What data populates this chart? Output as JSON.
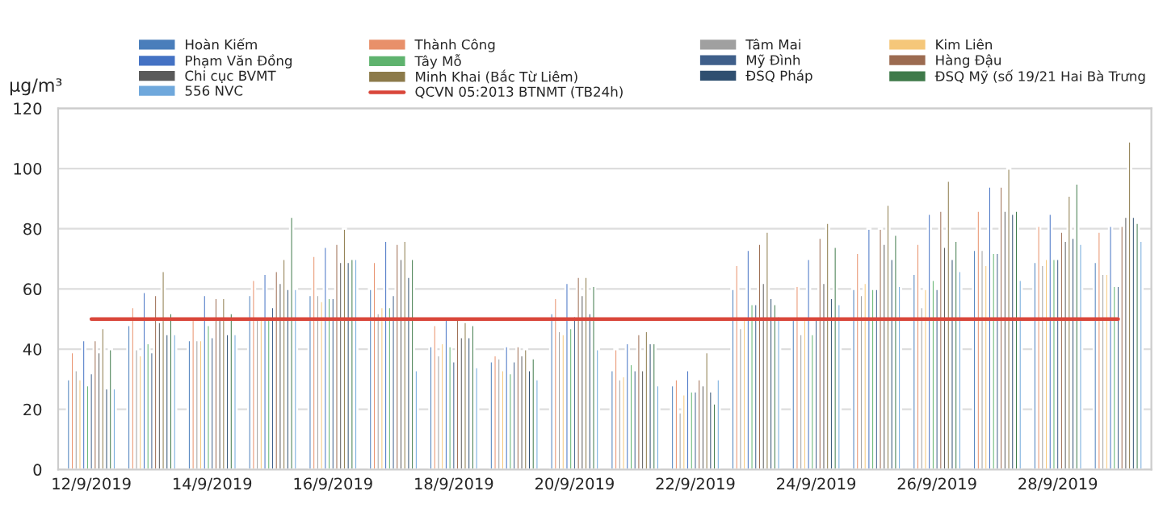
{
  "chart_data": {
    "type": "bar",
    "ylabel": "μg/m³",
    "categories": [
      "12/9/2019",
      null,
      "14/9/2019",
      null,
      "16/9/2019",
      null,
      "18/9/2019",
      null,
      "20/9/2019",
      null,
      "22/9/2019",
      null,
      "24/9/2019",
      null,
      "26/9/2019",
      null,
      "28/9/2019",
      null
    ],
    "series": [
      {
        "name": "Hoàn Kiếm",
        "color": "#4a7ebb",
        "values": [
          30,
          48,
          43,
          58,
          58,
          60,
          41,
          36,
          52,
          33,
          28,
          60,
          50,
          60,
          65,
          73,
          69,
          69
        ]
      },
      {
        "name": "Thành Công",
        "color": "#e8906a",
        "values": [
          39,
          54,
          50,
          63,
          71,
          69,
          48,
          38,
          57,
          40,
          30,
          68,
          61,
          72,
          75,
          86,
          81,
          79
        ]
      },
      {
        "name": "Tâm Mai",
        "color": "#a0a0a0",
        "values": [
          33,
          40,
          43,
          50,
          58,
          52,
          38,
          37,
          46,
          30,
          19,
          47,
          45,
          58,
          54,
          73,
          68,
          65
        ]
      },
      {
        "name": "Kim Liên",
        "color": "#f5c77a",
        "values": [
          30,
          38,
          43,
          50,
          56,
          54,
          42,
          33,
          45,
          31,
          25,
          50,
          50,
          62,
          60,
          68,
          70,
          65
        ]
      },
      {
        "name": "Phạm Văn Đồng",
        "color": "#4472c4",
        "values": [
          43,
          59,
          58,
          65,
          74,
          76,
          50,
          41,
          62,
          42,
          33,
          73,
          70,
          80,
          85,
          94,
          85,
          81
        ]
      },
      {
        "name": "Tây Mỗ",
        "color": "#5fb36e",
        "values": [
          28,
          42,
          48,
          50,
          57,
          54,
          41,
          32,
          47,
          35,
          26,
          55,
          45,
          60,
          63,
          72,
          70,
          61
        ]
      },
      {
        "name": "Mỹ Đình",
        "color": "#3f5f8a",
        "values": [
          32,
          39,
          44,
          54,
          57,
          58,
          36,
          36,
          51,
          33,
          26,
          55,
          50,
          60,
          60,
          72,
          70,
          61
        ]
      },
      {
        "name": "Hàng Đậu",
        "color": "#9c6b50",
        "values": [
          43,
          58,
          57,
          66,
          75,
          75,
          50,
          41,
          64,
          45,
          30,
          75,
          77,
          80,
          86,
          94,
          79,
          81
        ]
      },
      {
        "name": "Chi cục BVMT",
        "color": "#5a5a5a",
        "values": [
          39,
          49,
          50,
          62,
          69,
          70,
          44,
          38,
          58,
          33,
          28,
          62,
          62,
          75,
          74,
          86,
          76,
          84
        ]
      },
      {
        "name": "Minh Khai (Bắc Từ Liêm)",
        "color": "#8c7a4a",
        "values": [
          47,
          66,
          57,
          70,
          80,
          76,
          49,
          40,
          64,
          46,
          39,
          79,
          82,
          88,
          96,
          100,
          91,
          109
        ]
      },
      {
        "name": "ĐSQ Pháp",
        "color": "#2f4f70",
        "values": [
          27,
          45,
          45,
          60,
          69,
          64,
          44,
          33,
          52,
          42,
          26,
          57,
          57,
          70,
          70,
          85,
          77,
          84
        ]
      },
      {
        "name": "ĐSQ Mỹ (số 19/21 Hai Bà Trưng",
        "color": "#3f7a4a",
        "values": [
          40,
          52,
          52,
          84,
          70,
          70,
          48,
          37,
          61,
          42,
          22,
          55,
          74,
          78,
          76,
          86,
          95,
          82
        ]
      },
      {
        "name": "556 NVC",
        "color": "#6fa8dc",
        "values": [
          27,
          45,
          45,
          60,
          70,
          33,
          34,
          30,
          40,
          28,
          30,
          51,
          55,
          61,
          66,
          63,
          75,
          76
        ]
      },
      {
        "name": "QCVN 05:2013 BTNMT (TB24h)",
        "type": "line",
        "color": "#d9463a",
        "values": [
          50,
          50,
          50,
          50,
          50,
          50,
          50,
          50,
          50,
          50,
          50,
          50,
          50,
          50,
          50,
          50,
          50,
          50
        ]
      }
    ],
    "ylim": [
      0,
      120
    ],
    "yticks": [
      0,
      20,
      40,
      60,
      80,
      100,
      120
    ],
    "grid": "y",
    "legend": "top"
  }
}
